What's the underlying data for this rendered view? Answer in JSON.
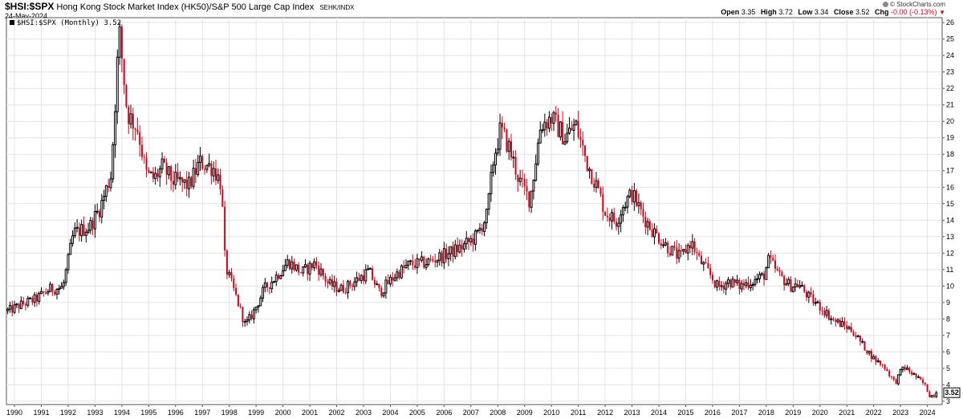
{
  "header": {
    "symbol": "$HSI:$SPX",
    "description": "Hong Kong Stock Market Index (HK50)/S&P 500 Large Cap Index",
    "exchange": "SEHK/INDX",
    "date": "24-May-2024",
    "credit": "© StockCharts.com",
    "ohlc": {
      "open_label": "Open",
      "open": "3.35",
      "high_label": "High",
      "high": "3.72",
      "low_label": "Low",
      "low": "3.34",
      "close_label": "Close",
      "close": "3.52",
      "chg_label": "Chg",
      "chg": "-0.00 (-0.13%)"
    }
  },
  "legend": {
    "label": "$HSI:$SPX (Monthly) 3.52",
    "swatch_color": "#000000"
  },
  "colors": {
    "up": "#000000",
    "down": "#d0021b",
    "grid": "#e3e3e3",
    "last_price_box": "#000000"
  },
  "chart_data": {
    "type": "candlestick",
    "frequency": "monthly",
    "x_labels": [
      "1990",
      "1991",
      "1992",
      "1993",
      "1994",
      "1995",
      "1996",
      "1997",
      "1998",
      "1999",
      "2000",
      "2001",
      "2002",
      "2003",
      "2004",
      "2005",
      "2006",
      "2007",
      "2008",
      "2009",
      "2010",
      "2011",
      "2012",
      "2013",
      "2014",
      "2015",
      "2016",
      "2017",
      "2018",
      "2019",
      "2020",
      "2021",
      "2022",
      "2023",
      "2024"
    ],
    "y_ticks": [
      3,
      4,
      5,
      6,
      7,
      8,
      9,
      10,
      11,
      12,
      13,
      14,
      15,
      16,
      17,
      18,
      19,
      20,
      21,
      22,
      23,
      24,
      25,
      26
    ],
    "ylim": [
      2.8,
      26.3
    ],
    "xlim": [
      1989.7,
      2024.55
    ],
    "last_value": "3.52",
    "grid": true,
    "y_axis_side": "right",
    "anchors": [
      [
        1989.8,
        8.5
      ],
      [
        1990.3,
        8.9
      ],
      [
        1990.8,
        9.2
      ],
      [
        1991.3,
        9.8
      ],
      [
        1991.8,
        9.9
      ],
      [
        1992.2,
        13.2
      ],
      [
        1992.8,
        13.6
      ],
      [
        1993.2,
        14.8
      ],
      [
        1993.6,
        16.8
      ],
      [
        1993.9,
        25.5
      ],
      [
        1994.2,
        20.5
      ],
      [
        1994.6,
        19.5
      ],
      [
        1994.9,
        16.8
      ],
      [
        1995.2,
        16.5
      ],
      [
        1995.5,
        17.2
      ],
      [
        1995.9,
        16.4
      ],
      [
        1996.5,
        16.1
      ],
      [
        1996.9,
        17.5
      ],
      [
        1997.4,
        17.2
      ],
      [
        1997.7,
        16.2
      ],
      [
        1997.85,
        11.2
      ],
      [
        1998.2,
        9.6
      ],
      [
        1998.6,
        7.6
      ],
      [
        1998.9,
        8.4
      ],
      [
        1999.3,
        9.8
      ],
      [
        1999.7,
        10.5
      ],
      [
        2000.2,
        11.5
      ],
      [
        2000.7,
        10.8
      ],
      [
        2001.2,
        11.4
      ],
      [
        2001.7,
        10.1
      ],
      [
        2002.2,
        9.8
      ],
      [
        2002.7,
        10.3
      ],
      [
        2003.2,
        10.9
      ],
      [
        2003.6,
        9.6
      ],
      [
        2004.2,
        10.7
      ],
      [
        2004.7,
        11.3
      ],
      [
        2005.3,
        11.4
      ],
      [
        2006.2,
        12.0
      ],
      [
        2006.7,
        12.4
      ],
      [
        2007.2,
        13.0
      ],
      [
        2007.6,
        14.3
      ],
      [
        2007.85,
        17.8
      ],
      [
        2008.1,
        19.5
      ],
      [
        2008.4,
        18.5
      ],
      [
        2008.8,
        16.4
      ],
      [
        2009.2,
        15.2
      ],
      [
        2009.6,
        19.8
      ],
      [
        2010.0,
        20.2
      ],
      [
        2010.5,
        19.0
      ],
      [
        2010.9,
        19.8
      ],
      [
        2011.3,
        17.6
      ],
      [
        2011.7,
        16.0
      ],
      [
        2012.0,
        14.5
      ],
      [
        2012.4,
        13.9
      ],
      [
        2012.7,
        15.0
      ],
      [
        2013.0,
        15.6
      ],
      [
        2013.4,
        14.3
      ],
      [
        2013.8,
        13.3
      ],
      [
        2014.3,
        12.4
      ],
      [
        2014.8,
        11.7
      ],
      [
        2015.2,
        12.7
      ],
      [
        2015.5,
        11.6
      ],
      [
        2015.9,
        10.7
      ],
      [
        2016.2,
        9.9
      ],
      [
        2016.6,
        10.3
      ],
      [
        2017.0,
        10.0
      ],
      [
        2017.5,
        10.3
      ],
      [
        2017.9,
        10.6
      ],
      [
        2018.1,
        11.6
      ],
      [
        2018.5,
        10.6
      ],
      [
        2018.9,
        10.0
      ],
      [
        2019.2,
        10.1
      ],
      [
        2019.6,
        9.3
      ],
      [
        2020.1,
        8.6
      ],
      [
        2020.5,
        7.9
      ],
      [
        2020.9,
        7.6
      ],
      [
        2021.2,
        7.3
      ],
      [
        2021.6,
        6.4
      ],
      [
        2022.0,
        5.6
      ],
      [
        2022.4,
        5.1
      ],
      [
        2022.8,
        4.1
      ],
      [
        2023.1,
        5.1
      ],
      [
        2023.5,
        4.6
      ],
      [
        2023.9,
        4.0
      ],
      [
        2024.1,
        3.3
      ],
      [
        2024.4,
        3.5
      ]
    ]
  }
}
